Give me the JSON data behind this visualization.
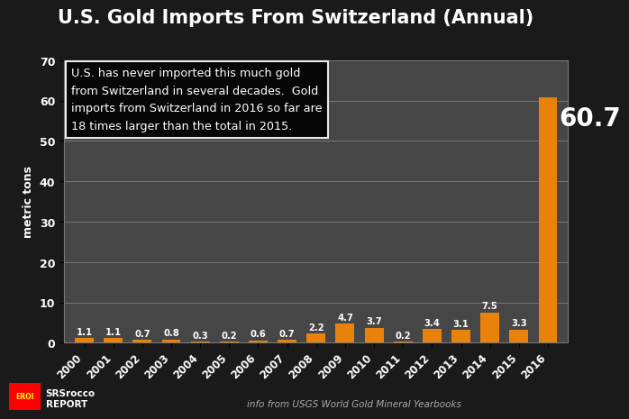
{
  "title_main": "U.S. Gold Imports From Switzerland",
  "title_suffix": " (Annual)",
  "years": [
    "2000",
    "2001",
    "2002",
    "2003",
    "2004",
    "2005",
    "2006",
    "2007",
    "2008",
    "2009",
    "2010",
    "2011",
    "2012",
    "2013",
    "2014",
    "2015",
    "2016"
  ],
  "values": [
    1.1,
    1.1,
    0.7,
    0.8,
    0.3,
    0.2,
    0.6,
    0.7,
    2.2,
    4.7,
    3.7,
    0.2,
    3.4,
    3.1,
    7.5,
    3.3,
    60.7
  ],
  "bar_color": "#E8820A",
  "background_color": "#1a1a1a",
  "plot_bg_color": "#464646",
  "ylabel": "metric tons",
  "ylim": [
    0,
    70
  ],
  "yticks": [
    0,
    10,
    20,
    30,
    40,
    50,
    60,
    70
  ],
  "annotation_box_text": "U.S. has never imported this much gold\nfrom Switzerland in several decades.  Gold\nimports from Switzerland in 2016 so far are\n18 times larger than the total in 2015.",
  "footer_right": "info from USGS World Gold Mineral Yearbooks",
  "value_label_color": "#ffffff",
  "grid_color": "#777777",
  "title_fontsize": 15,
  "bar_width": 0.65
}
